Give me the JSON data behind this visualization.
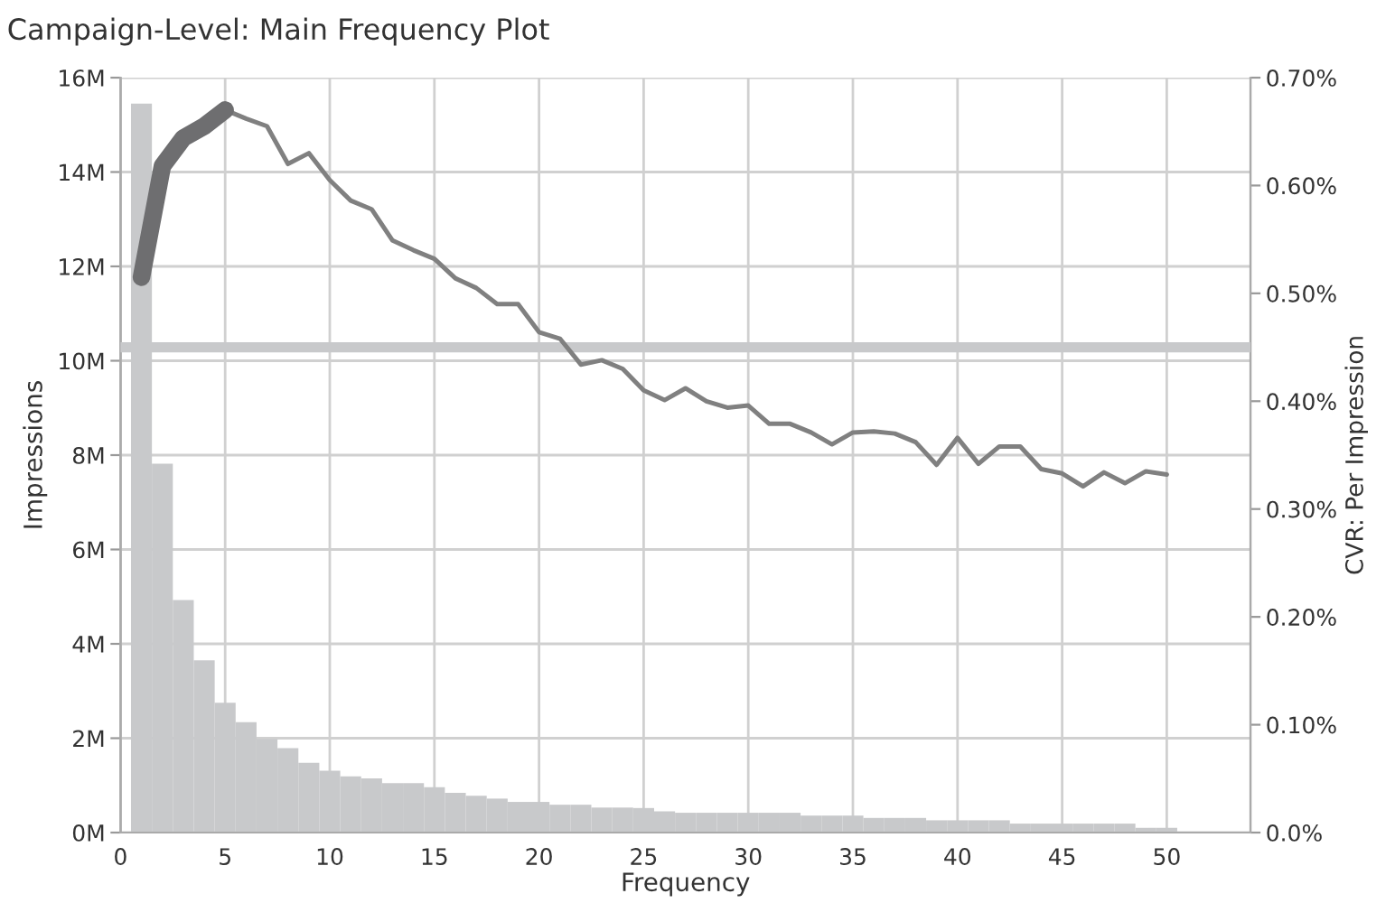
{
  "chart_data": {
    "type": "histogram",
    "title": "Campaign-Level: Main Frequency Plot",
    "xlabel": "Frequency",
    "ylabel": "Impressions",
    "y2label": "CVR: Per Impression",
    "bins": [
      0.5,
      1.5,
      2.5,
      3.5,
      4.5,
      5.5,
      6.5,
      7.5,
      8.5,
      9.5,
      10.5,
      11.5,
      12.5,
      13.5,
      14.5,
      15.5,
      16.5,
      17.5,
      18.5,
      19.5,
      20.5,
      21.5,
      22.5,
      23.5,
      24.5,
      25.5,
      26.5,
      27.5,
      28.5,
      29.5,
      30.5,
      31.5,
      32.5,
      33.5,
      34.5,
      35.5,
      36.5,
      37.5,
      38.5,
      39.5,
      40.5,
      41.5,
      42.5,
      43.5,
      44.5,
      45.5,
      46.5,
      47.5,
      48.5,
      49.5,
      50.5
    ],
    "series": [
      {
        "color": "#c8c9cb",
        "values": [
          15.45,
          7.82,
          4.93,
          3.65,
          2.75,
          2.34,
          1.98,
          1.79,
          1.48,
          1.31,
          1.19,
          1.15,
          1.05,
          1.05,
          0.96,
          0.84,
          0.78,
          0.72,
          0.65,
          0.65,
          0.59,
          0.59,
          0.53,
          0.53,
          0.52,
          0.45,
          0.42,
          0.42,
          0.42,
          0.42,
          0.42,
          0.42,
          0.36,
          0.36,
          0.36,
          0.31,
          0.31,
          0.31,
          0.26,
          0.26,
          0.26,
          0.26,
          0.19,
          0.19,
          0.19,
          0.19,
          0.19,
          0.19,
          0.1,
          0.1
        ]
      },
      {
        "type": "line",
        "axis": "y2",
        "color": "#808080",
        "x": [
          1,
          2,
          3,
          4,
          5,
          6,
          7,
          8,
          9,
          10,
          11,
          12,
          13,
          14,
          15,
          16,
          17,
          18,
          19,
          20,
          21,
          22,
          23,
          24,
          25,
          26,
          27,
          28,
          29,
          30,
          31,
          32,
          33,
          34,
          35,
          36,
          37,
          38,
          39,
          40,
          41,
          42,
          43,
          44,
          45,
          46,
          47,
          48,
          49,
          50
        ],
        "values": [
          0.515,
          0.618,
          0.644,
          0.655,
          0.67,
          0.662,
          0.655,
          0.62,
          0.63,
          0.605,
          0.586,
          0.578,
          0.549,
          0.54,
          0.532,
          0.514,
          0.505,
          0.49,
          0.49,
          0.464,
          0.458,
          0.434,
          0.438,
          0.43,
          0.41,
          0.401,
          0.412,
          0.4,
          0.394,
          0.396,
          0.379,
          0.379,
          0.371,
          0.36,
          0.371,
          0.372,
          0.37,
          0.362,
          0.341,
          0.366,
          0.342,
          0.358,
          0.358,
          0.337,
          0.333,
          0.321,
          0.334,
          0.324,
          0.335,
          0.332
        ]
      },
      {
        "type": "line",
        "axis": "y2",
        "color": "#6e6e70",
        "x": [
          1,
          2,
          3,
          4,
          5
        ],
        "values": [
          0.515,
          0.618,
          0.644,
          0.655,
          0.67
        ]
      }
    ],
    "ref_lines": [
      {
        "axis": "y2",
        "value": 0.45,
        "color": "#c8c9cb"
      }
    ],
    "xlim": [
      0,
      54
    ],
    "xticks": [
      0,
      5,
      10,
      15,
      20,
      25,
      30,
      35,
      40,
      45,
      50
    ],
    "ylim": [
      0,
      16
    ],
    "yticks": [
      {
        "value": 0,
        "label": "0M"
      },
      {
        "value": 2,
        "label": "2M"
      },
      {
        "value": 4,
        "label": "4M"
      },
      {
        "value": 6,
        "label": "6M"
      },
      {
        "value": 8,
        "label": "8M"
      },
      {
        "value": 10,
        "label": "10M"
      },
      {
        "value": 12,
        "label": "12M"
      },
      {
        "value": 14,
        "label": "14M"
      },
      {
        "value": 16,
        "label": "16M"
      }
    ],
    "y2lim": [
      0,
      0.7
    ],
    "y2ticks": [
      {
        "value": 0,
        "label": "0.0%"
      },
      {
        "value": 0.1,
        "label": "0.10%"
      },
      {
        "value": 0.2,
        "label": "0.20%"
      },
      {
        "value": 0.3,
        "label": "0.30%"
      },
      {
        "value": 0.4,
        "label": "0.40%"
      },
      {
        "value": 0.5,
        "label": "0.50%"
      },
      {
        "value": 0.6,
        "label": "0.60%"
      },
      {
        "value": 0.7,
        "label": "0.70%"
      }
    ],
    "grid": true
  }
}
